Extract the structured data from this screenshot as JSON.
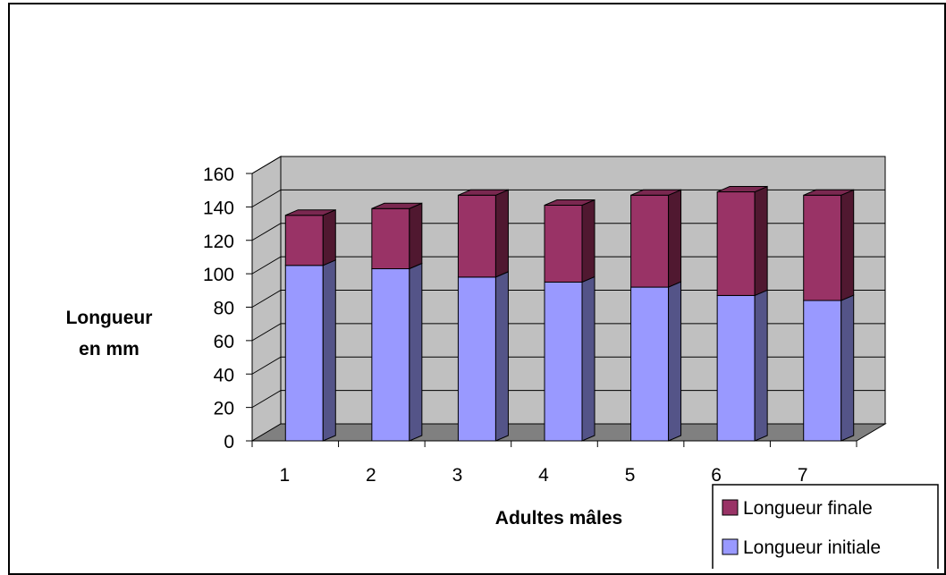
{
  "chart_data": {
    "type": "bar",
    "stacked": true,
    "three_d": true,
    "categories": [
      "1",
      "2",
      "3",
      "4",
      "5",
      "6",
      "7"
    ],
    "series": [
      {
        "name": "Longueur initiale",
        "values": [
          105,
          103,
          98,
          95,
          92,
          87,
          84
        ],
        "color": "#9999FF",
        "side_color": "#545488",
        "top_color": "#7878C8"
      },
      {
        "name": "Longueur finale",
        "values": [
          30,
          36,
          49,
          46,
          55,
          62,
          63
        ],
        "color": "#993366",
        "side_color": "#501830",
        "top_color": "#7A2850"
      }
    ],
    "xlabel": "Adultes mâles",
    "ylabel_lines": [
      "Longueur",
      "en mm"
    ],
    "ylim": [
      0,
      160
    ],
    "yticks": [
      "0",
      "20",
      "40",
      "60",
      "80",
      "100",
      "120",
      "140",
      "160"
    ],
    "grid": true,
    "legend_position": "bottom-right",
    "colors": {
      "wall": "#C0C0C0",
      "floor": "#808080",
      "grid": "#000000"
    }
  }
}
